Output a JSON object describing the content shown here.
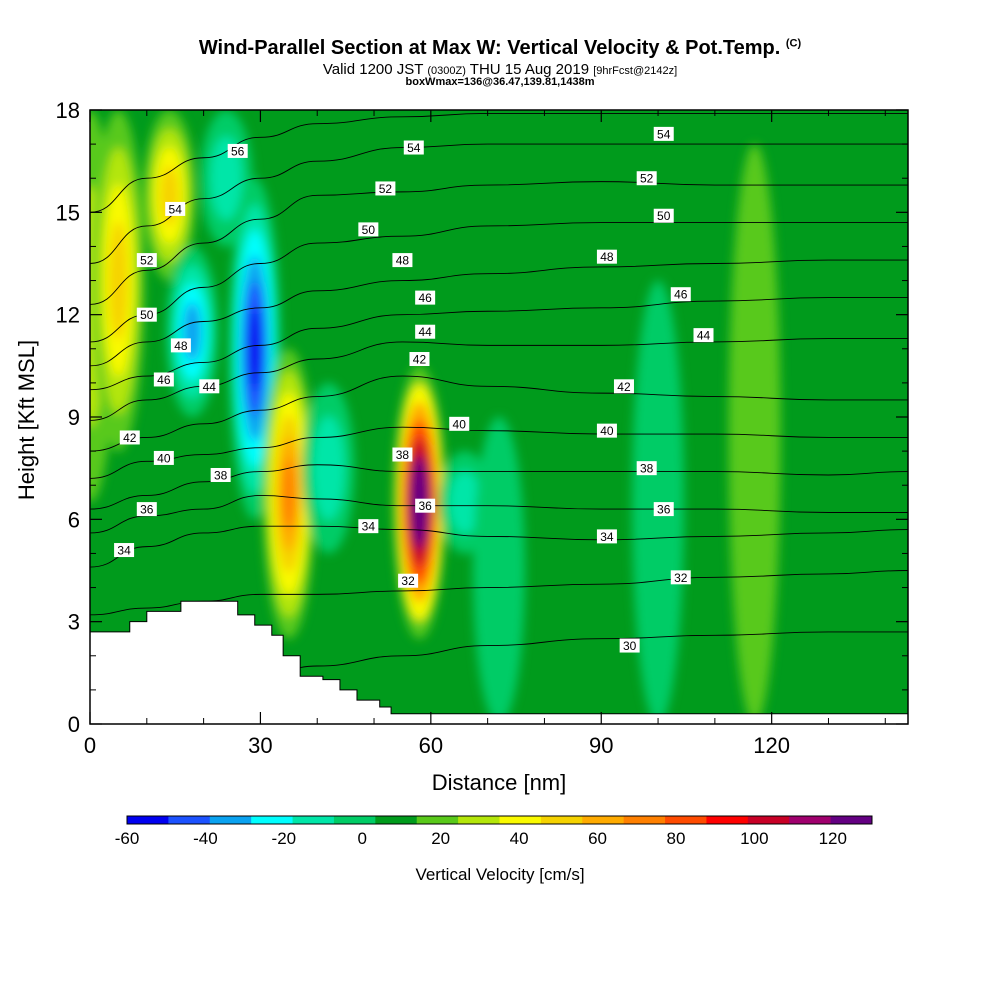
{
  "header": {
    "title_main": "Wind-Parallel Section at Max W: Vertical Velocity & Pot.Temp.",
    "title_unit": "(C)",
    "valid_prefix": "Valid 1200 JST",
    "valid_utc": "(0300Z)",
    "valid_date": "THU 15 Aug 2019",
    "forecast_info": "[9hrFcst@2142z]",
    "boxwmax": "boxWmax=136@36.47,139.81,1438m"
  },
  "chart_data": {
    "type": "heatmap",
    "xlabel": "Distance [nm]",
    "ylabel": "Height [Kft MSL]",
    "xlim": [
      0,
      144
    ],
    "ylim": [
      0,
      18
    ],
    "x_ticks": [
      0,
      30,
      60,
      90,
      120
    ],
    "y_ticks": [
      0,
      3,
      6,
      9,
      12,
      15,
      18
    ],
    "colorbar": {
      "label": "Vertical Velocity [cm/s]",
      "tick_values": [
        -60,
        -40,
        -20,
        0,
        20,
        40,
        60,
        80,
        100,
        120
      ],
      "min": -60,
      "max": 130,
      "step": 10,
      "colors": [
        "#0000f0",
        "#1c52ff",
        "#0aa2f0",
        "#00ffff",
        "#00e6a8",
        "#00cc66",
        "#009b1c",
        "#59c91a",
        "#b4e60a",
        "#fafa00",
        "#f5d200",
        "#ffab00",
        "#ff8000",
        "#ff4b00",
        "#ff0000",
        "#c80026",
        "#a0006e",
        "#640082"
      ]
    },
    "velocity_features": [
      {
        "x": 0,
        "y_min": 6.5,
        "y_max": 18,
        "w_peak": 20
      },
      {
        "x": 5,
        "y_min": 8,
        "y_max": 18,
        "w_peak": 40
      },
      {
        "x": 14,
        "y_min": 13,
        "y_max": 18,
        "w_peak": 40
      },
      {
        "x": 18,
        "y_min": 9,
        "y_max": 14,
        "w_peak": -40
      },
      {
        "x": 24,
        "y_min": 14,
        "y_max": 18,
        "w_peak": -20
      },
      {
        "x": 29,
        "y_min": 6,
        "y_max": 16,
        "w_peak": -60
      },
      {
        "x": 35,
        "y_min": 2.5,
        "y_max": 11,
        "w_peak": 60
      },
      {
        "x": 42,
        "y_min": 5,
        "y_max": 10,
        "w_peak": -20
      },
      {
        "x": 58,
        "y_min": 2.5,
        "y_max": 10.5,
        "w_peak": 130
      },
      {
        "x": 66,
        "y_min": 5,
        "y_max": 8,
        "w_peak": -20
      },
      {
        "x": 72,
        "y_min": 0,
        "y_max": 9,
        "w_peak": -10
      },
      {
        "x": 100,
        "y_min": 0,
        "y_max": 13,
        "w_peak": -10
      },
      {
        "x": 117,
        "y_min": 0,
        "y_max": 17,
        "w_peak": 10
      }
    ],
    "theta_contours": [
      {
        "value": 30,
        "y": [
          0.8,
          0.9,
          1.2,
          1.4,
          1.7,
          2.0,
          2.3,
          2.5,
          2.6,
          2.7,
          2.7
        ]
      },
      {
        "value": 32,
        "y": [
          3.2,
          3.4,
          3.6,
          3.8,
          3.8,
          3.9,
          4.0,
          4.1,
          4.3,
          4.4,
          4.5
        ]
      },
      {
        "value": 34,
        "y": [
          4.6,
          5.2,
          5.6,
          5.8,
          5.8,
          5.7,
          5.5,
          5.4,
          5.5,
          5.6,
          5.7
        ]
      },
      {
        "value": 36,
        "y": [
          5.6,
          6.1,
          6.3,
          6.7,
          6.6,
          6.4,
          6.4,
          6.3,
          6.3,
          6.2,
          6.2
        ]
      },
      {
        "value": 38,
        "y": [
          6.3,
          6.7,
          7.1,
          7.4,
          7.6,
          7.4,
          7.4,
          7.4,
          7.4,
          7.3,
          7.4
        ]
      },
      {
        "value": 40,
        "y": [
          7.2,
          7.7,
          7.9,
          8.1,
          8.4,
          8.7,
          8.6,
          8.5,
          8.5,
          8.4,
          8.4
        ]
      },
      {
        "value": 42,
        "y": [
          8.0,
          8.4,
          8.8,
          9.2,
          9.6,
          10.2,
          9.9,
          9.7,
          9.6,
          9.5,
          9.5
        ]
      },
      {
        "value": 44,
        "y": [
          8.9,
          9.5,
          9.9,
          10.3,
          10.7,
          11.2,
          11.1,
          11.1,
          11.2,
          11.3,
          11.3
        ]
      },
      {
        "value": 46,
        "y": [
          9.8,
          10.2,
          10.6,
          11.1,
          11.6,
          12.0,
          12.1,
          12.2,
          12.4,
          12.5,
          12.5
        ]
      },
      {
        "value": 48,
        "y": [
          10.5,
          11.2,
          11.8,
          12.2,
          12.7,
          13.0,
          13.2,
          13.4,
          13.5,
          13.6,
          13.6
        ]
      },
      {
        "value": 50,
        "y": [
          11.2,
          12.0,
          12.8,
          13.5,
          14.1,
          14.3,
          14.6,
          14.7,
          14.7,
          14.7,
          14.7
        ]
      },
      {
        "value": 52,
        "y": [
          12.3,
          13.3,
          14.1,
          14.8,
          15.5,
          15.6,
          15.8,
          15.9,
          15.8,
          15.8,
          15.8
        ]
      },
      {
        "value": 54,
        "y": [
          13.5,
          14.6,
          15.4,
          16.0,
          16.5,
          16.9,
          17.0,
          17.0,
          17.0,
          17.0,
          17.0
        ]
      },
      {
        "value": 56,
        "y": [
          15.0,
          16.0,
          16.6,
          17.2,
          17.6,
          17.8,
          17.9,
          17.9,
          17.9,
          17.9,
          17.9
        ]
      }
    ],
    "contour_x": [
      0,
      10,
      20,
      30,
      40,
      55,
      70,
      90,
      110,
      130,
      144
    ],
    "contour_labels": [
      {
        "value": "30",
        "x": 95,
        "y": 2.3
      },
      {
        "value": "32",
        "x": 56,
        "y": 4.2
      },
      {
        "value": "32",
        "x": 104,
        "y": 4.3
      },
      {
        "value": "34",
        "x": 6,
        "y": 5.1
      },
      {
        "value": "34",
        "x": 49,
        "y": 5.8
      },
      {
        "value": "34",
        "x": 91,
        "y": 5.5
      },
      {
        "value": "36",
        "x": 10,
        "y": 6.3
      },
      {
        "value": "36",
        "x": 59,
        "y": 6.4
      },
      {
        "value": "36",
        "x": 101,
        "y": 6.3
      },
      {
        "value": "38",
        "x": 23,
        "y": 7.3
      },
      {
        "value": "38",
        "x": 55,
        "y": 7.9
      },
      {
        "value": "38",
        "x": 98,
        "y": 7.5
      },
      {
        "value": "40",
        "x": 13,
        "y": 7.8
      },
      {
        "value": "40",
        "x": 65,
        "y": 8.8
      },
      {
        "value": "40",
        "x": 91,
        "y": 8.6
      },
      {
        "value": "42",
        "x": 7,
        "y": 8.4
      },
      {
        "value": "42",
        "x": 58,
        "y": 10.7
      },
      {
        "value": "42",
        "x": 94,
        "y": 9.9
      },
      {
        "value": "44",
        "x": 21,
        "y": 9.9
      },
      {
        "value": "44",
        "x": 59,
        "y": 11.5
      },
      {
        "value": "44",
        "x": 108,
        "y": 11.4
      },
      {
        "value": "46",
        "x": 13,
        "y": 10.1
      },
      {
        "value": "46",
        "x": 59,
        "y": 12.5
      },
      {
        "value": "46",
        "x": 104,
        "y": 12.6
      },
      {
        "value": "48",
        "x": 16,
        "y": 11.1
      },
      {
        "value": "48",
        "x": 55,
        "y": 13.6
      },
      {
        "value": "48",
        "x": 91,
        "y": 13.7
      },
      {
        "value": "50",
        "x": 10,
        "y": 12.0
      },
      {
        "value": "50",
        "x": 49,
        "y": 14.5
      },
      {
        "value": "50",
        "x": 101,
        "y": 14.9
      },
      {
        "value": "52",
        "x": 10,
        "y": 13.6
      },
      {
        "value": "52",
        "x": 52,
        "y": 15.7
      },
      {
        "value": "52",
        "x": 98,
        "y": 16.0
      },
      {
        "value": "54",
        "x": 15,
        "y": 15.1
      },
      {
        "value": "54",
        "x": 57,
        "y": 16.9
      },
      {
        "value": "54",
        "x": 101,
        "y": 17.3
      },
      {
        "value": "56",
        "x": 26,
        "y": 16.8
      }
    ],
    "terrain": [
      [
        0,
        2.7
      ],
      [
        7,
        2.7
      ],
      [
        7,
        3.0
      ],
      [
        10,
        3.0
      ],
      [
        10,
        3.3
      ],
      [
        16,
        3.3
      ],
      [
        16,
        3.6
      ],
      [
        26,
        3.6
      ],
      [
        26,
        3.2
      ],
      [
        29,
        3.2
      ],
      [
        29,
        2.9
      ],
      [
        32,
        2.9
      ],
      [
        32,
        2.6
      ],
      [
        34,
        2.6
      ],
      [
        34,
        2.0
      ],
      [
        37,
        2.0
      ],
      [
        37,
        1.4
      ],
      [
        41,
        1.4
      ],
      [
        41,
        1.3
      ],
      [
        44,
        1.3
      ],
      [
        44,
        1.0
      ],
      [
        47,
        1.0
      ],
      [
        47,
        0.7
      ],
      [
        51,
        0.7
      ],
      [
        51,
        0.5
      ],
      [
        53,
        0.5
      ],
      [
        53,
        0.3
      ],
      [
        144,
        0.3
      ]
    ]
  }
}
